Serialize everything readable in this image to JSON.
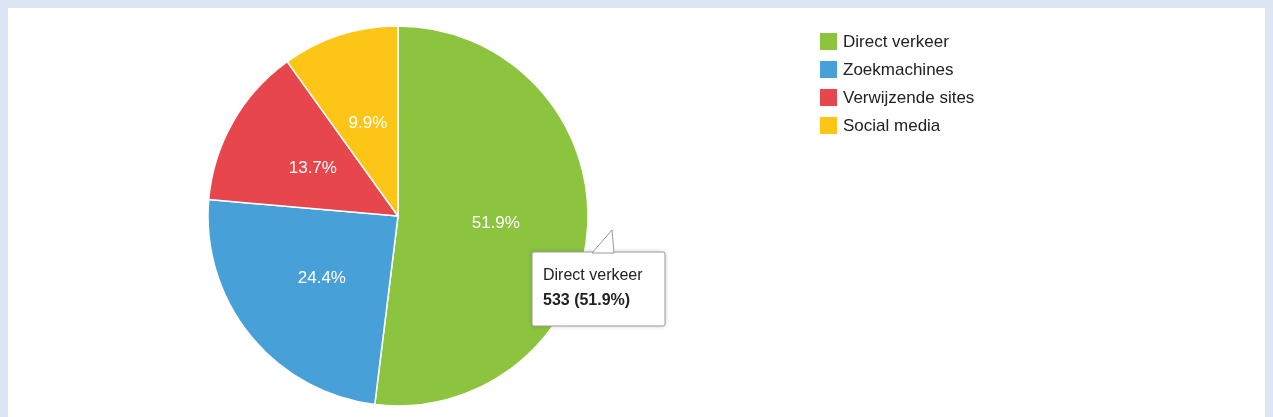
{
  "chart_data": {
    "type": "pie",
    "categories": [
      "Direct verkeer",
      "Zoekmachines",
      "Verwijzende sites",
      "Social media"
    ],
    "values": [
      51.9,
      24.4,
      13.7,
      9.9
    ],
    "value_labels": [
      "51.9%",
      "24.4%",
      "13.7%",
      "9.9%"
    ],
    "colors": [
      "#8cc43f",
      "#47a0d8",
      "#e8464d",
      "#fdc515"
    ],
    "legend": "top right",
    "annotations": [
      "Direct verkeer",
      "533 (51.9%)"
    ]
  }
}
